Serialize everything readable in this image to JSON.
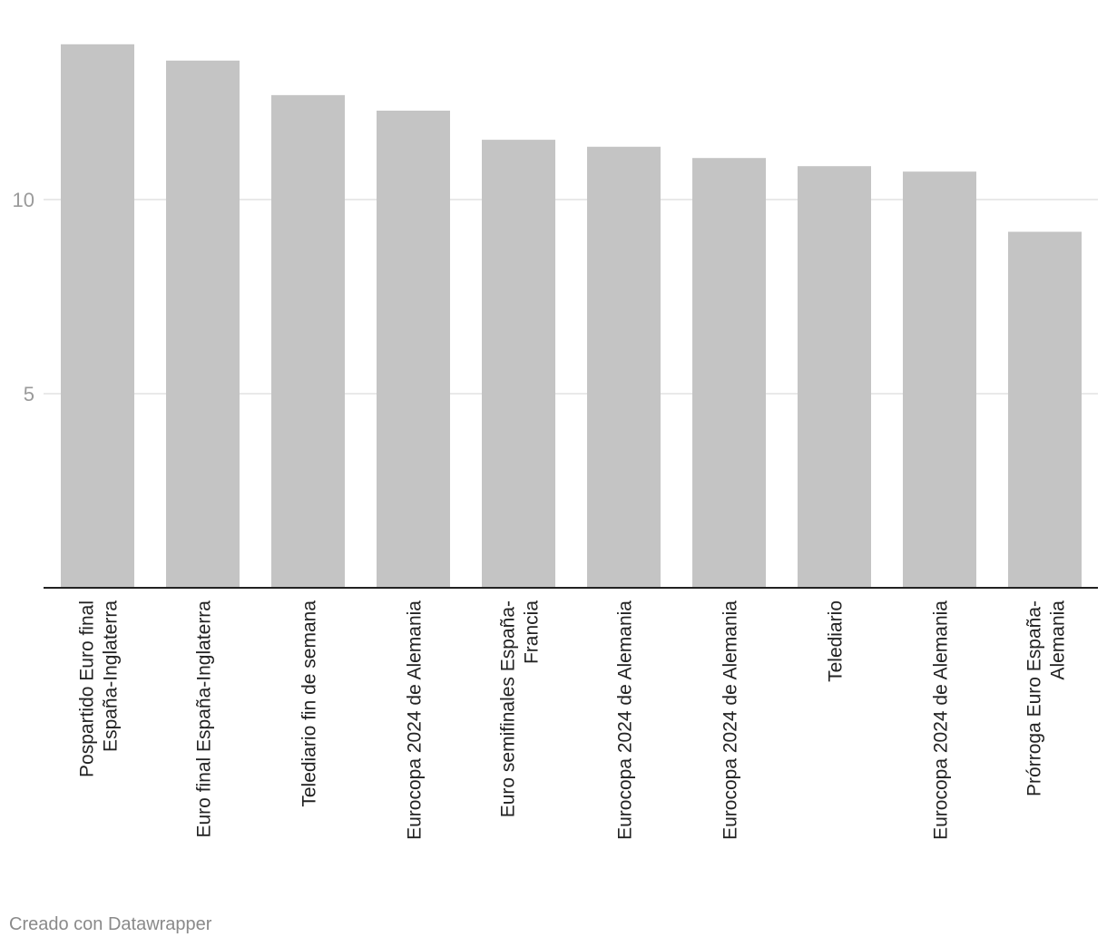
{
  "chart_data": {
    "type": "bar",
    "title": "",
    "xlabel": "",
    "ylabel": "",
    "ylim": [
      0,
      15
    ],
    "yticks": [
      5,
      10
    ],
    "grid": true,
    "bar_color": "#c4c4c4",
    "categories": [
      [
        "Pospartido Euro final",
        "España-Inglaterra"
      ],
      [
        "Euro final España-Inglaterra"
      ],
      [
        "Telediario fin de semana"
      ],
      [
        "Eurocopa 2024 de Alemania"
      ],
      [
        "Euro semifinales España-",
        "Francia"
      ],
      [
        "Eurocopa 2024 de Alemania"
      ],
      [
        "Eurocopa 2024 de Alemania"
      ],
      [
        "Telediario"
      ],
      [
        "Eurocopa 2024 de Alemania"
      ],
      [
        "Prórroga Euro España-",
        "Alemania"
      ]
    ],
    "values": [
      14.0,
      13.58,
      12.69,
      12.29,
      11.54,
      11.36,
      11.07,
      10.86,
      10.72,
      9.17
    ]
  },
  "footer": {
    "credit": "Creado con Datawrapper"
  }
}
